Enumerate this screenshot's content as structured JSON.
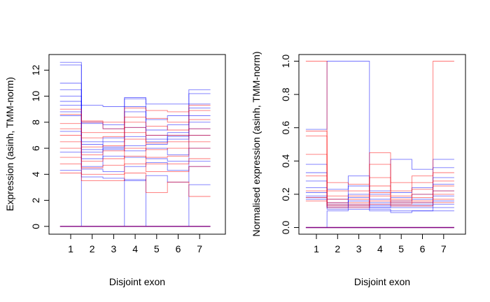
{
  "chart_data": [
    {
      "type": "line",
      "xlabel": "Disjoint exon",
      "ylabel": "Expression (asinh, TMM-norm)",
      "categories": [
        "1",
        "2",
        "3",
        "4",
        "5",
        "6",
        "7"
      ],
      "ylim": [
        -0.6,
        13.2
      ],
      "yticks": [
        "0",
        "2",
        "4",
        "6",
        "8",
        "10",
        "12"
      ],
      "grid": false,
      "legend": "none",
      "colors": {
        "group_a": "#0000ff",
        "group_b": "#ff0000",
        "overlap": "#800080"
      },
      "series": [
        {
          "color": "#0000ff",
          "values": [
            12.6,
            9.3,
            9.2,
            9.9,
            9.4,
            9.4,
            10.5
          ]
        },
        {
          "color": "#0000ff",
          "values": [
            12.4,
            8.0,
            7.8,
            9.8,
            8.2,
            8.5,
            10.2
          ]
        },
        {
          "color": "#0000ff",
          "values": [
            11.0,
            7.9,
            7.5,
            9.2,
            7.0,
            7.2,
            9.4
          ]
        },
        {
          "color": "#0000ff",
          "values": [
            10.5,
            6.5,
            6.8,
            8.8,
            7.4,
            7.8,
            9.1
          ]
        },
        {
          "color": "#0000ff",
          "values": [
            10.0,
            6.3,
            6.1,
            7.6,
            6.5,
            7.0,
            8.5
          ]
        },
        {
          "color": "#0000ff",
          "values": [
            9.6,
            5.9,
            6.5,
            6.9,
            6.7,
            6.7,
            8.0
          ]
        },
        {
          "color": "#0000ff",
          "values": [
            9.3,
            5.7,
            6.0,
            6.2,
            6.3,
            6.9,
            7.5
          ]
        },
        {
          "color": "#0000ff",
          "values": [
            8.8,
            5.2,
            5.9,
            5.8,
            6.0,
            5.5,
            7.0
          ]
        },
        {
          "color": "#0000ff",
          "values": [
            8.5,
            4.6,
            5.4,
            5.3,
            5.2,
            5.0,
            6.0
          ]
        },
        {
          "color": "#0000ff",
          "values": [
            7.3,
            4.4,
            4.2,
            4.6,
            4.9,
            4.3,
            5.0
          ]
        },
        {
          "color": "#0000ff",
          "values": [
            5.7,
            3.8,
            3.7,
            3.5,
            3.9,
            3.4,
            4.6
          ]
        },
        {
          "color": "#0000ff",
          "values": [
            4.3,
            0.0,
            0.0,
            3.6,
            0.0,
            0.0,
            3.2
          ]
        },
        {
          "color": "#ff0000",
          "values": [
            9.0,
            8.1,
            8.0,
            9.1,
            8.9,
            8.8,
            9.3
          ]
        },
        {
          "color": "#ff0000",
          "values": [
            8.6,
            8.0,
            7.5,
            8.4,
            8.3,
            8.0,
            8.9
          ]
        },
        {
          "color": "#ff0000",
          "values": [
            7.9,
            7.2,
            7.2,
            8.0,
            7.7,
            7.4,
            8.2
          ]
        },
        {
          "color": "#ff0000",
          "values": [
            7.5,
            6.8,
            6.9,
            7.6,
            7.0,
            7.0,
            7.5
          ]
        },
        {
          "color": "#ff0000",
          "values": [
            7.0,
            6.1,
            6.2,
            7.2,
            6.4,
            6.5,
            7.0
          ]
        },
        {
          "color": "#ff0000",
          "values": [
            6.5,
            5.5,
            5.8,
            6.7,
            5.9,
            6.0,
            6.5
          ]
        },
        {
          "color": "#ff0000",
          "values": [
            6.0,
            5.0,
            5.2,
            6.0,
            5.3,
            5.4,
            6.0
          ]
        },
        {
          "color": "#ff0000",
          "values": [
            5.3,
            4.5,
            4.7,
            5.4,
            4.8,
            4.8,
            5.2
          ]
        },
        {
          "color": "#ff0000",
          "values": [
            4.8,
            4.0,
            4.0,
            4.8,
            4.2,
            4.2,
            4.6
          ]
        },
        {
          "color": "#ff0000",
          "values": [
            4.1,
            3.5,
            3.5,
            4.1,
            2.6,
            3.4,
            2.3
          ]
        },
        {
          "color": "#800080",
          "values": [
            0.0,
            0.0,
            0.0,
            0.0,
            0.0,
            0.0,
            0.0
          ]
        }
      ]
    },
    {
      "type": "line",
      "xlabel": "Disjoint exon",
      "ylabel": "Normalised expression (asinh, TMM-norm)",
      "categories": [
        "1",
        "2",
        "3",
        "4",
        "5",
        "6",
        "7"
      ],
      "ylim": [
        -0.04,
        1.04
      ],
      "yticks": [
        "0.0",
        "0.2",
        "0.4",
        "0.6",
        "0.8",
        "1.0"
      ],
      "grid": false,
      "legend": "none",
      "colors": {
        "group_a": "#0000ff",
        "group_b": "#ff0000",
        "overlap": "#800080"
      },
      "series": [
        {
          "color": "#0000ff",
          "values": [
            0.59,
            1.0,
            1.0,
            0.22,
            0.41,
            0.35,
            0.41
          ]
        },
        {
          "color": "#0000ff",
          "values": [
            0.38,
            0.23,
            0.31,
            0.2,
            0.21,
            0.24,
            0.36
          ]
        },
        {
          "color": "#0000ff",
          "values": [
            0.33,
            0.17,
            0.25,
            0.17,
            0.18,
            0.2,
            0.3
          ]
        },
        {
          "color": "#0000ff",
          "values": [
            0.28,
            0.15,
            0.2,
            0.15,
            0.16,
            0.17,
            0.26
          ]
        },
        {
          "color": "#0000ff",
          "values": [
            0.24,
            0.14,
            0.18,
            0.14,
            0.15,
            0.15,
            0.22
          ]
        },
        {
          "color": "#0000ff",
          "values": [
            0.21,
            0.13,
            0.16,
            0.13,
            0.14,
            0.14,
            0.19
          ]
        },
        {
          "color": "#0000ff",
          "values": [
            0.19,
            0.12,
            0.14,
            0.12,
            0.13,
            0.13,
            0.16
          ]
        },
        {
          "color": "#0000ff",
          "values": [
            0.18,
            0.11,
            0.13,
            0.12,
            0.12,
            0.12,
            0.14
          ]
        },
        {
          "color": "#0000ff",
          "values": [
            0.17,
            0.12,
            0.12,
            0.11,
            0.1,
            0.1,
            0.12
          ]
        },
        {
          "color": "#0000ff",
          "values": [
            0.0,
            0.1,
            0.11,
            0.1,
            0.09,
            0.1,
            0.1
          ]
        },
        {
          "color": "#ff0000",
          "values": [
            1.0,
            0.27,
            0.26,
            0.45,
            0.27,
            0.31,
            1.0
          ]
        },
        {
          "color": "#ff0000",
          "values": [
            0.58,
            0.22,
            0.22,
            0.38,
            0.22,
            0.27,
            0.33
          ]
        },
        {
          "color": "#ff0000",
          "values": [
            0.55,
            0.19,
            0.19,
            0.3,
            0.19,
            0.23,
            0.28
          ]
        },
        {
          "color": "#ff0000",
          "values": [
            0.44,
            0.17,
            0.17,
            0.25,
            0.17,
            0.2,
            0.25
          ]
        },
        {
          "color": "#ff0000",
          "values": [
            0.31,
            0.15,
            0.15,
            0.21,
            0.16,
            0.18,
            0.22
          ]
        },
        {
          "color": "#ff0000",
          "values": [
            0.22,
            0.14,
            0.14,
            0.19,
            0.15,
            0.16,
            0.2
          ]
        },
        {
          "color": "#ff0000",
          "values": [
            0.18,
            0.13,
            0.13,
            0.16,
            0.14,
            0.15,
            0.17
          ]
        },
        {
          "color": "#ff0000",
          "values": [
            0.16,
            0.12,
            0.12,
            0.14,
            0.13,
            0.13,
            0.15
          ]
        },
        {
          "color": "#800080",
          "values": [
            0.0,
            0.0,
            0.0,
            0.0,
            0.0,
            0.0,
            0.0
          ]
        }
      ]
    }
  ]
}
